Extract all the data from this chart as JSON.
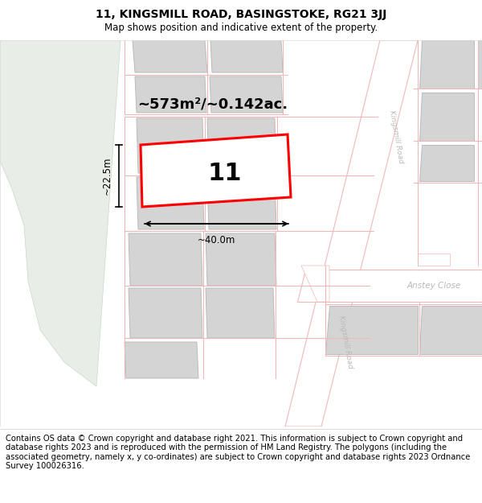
{
  "title": "11, KINGSMILL ROAD, BASINGSTOKE, RG21 3JJ",
  "subtitle": "Map shows position and indicative extent of the property.",
  "footer_line1": "Contains OS data © Crown copyright and database right 2021. This information is subject to Crown copyright and database rights 2023 and is reproduced with the permission of",
  "footer_line2": "HM Land Registry. The polygons (including the associated geometry, namely x, y co-ordinates) are subject to Crown copyright and database rights 2023 Ordnance Survey 100026316.",
  "area_label": "~573m²/~0.142ac.",
  "width_label": "~40.0m",
  "height_label": "~22.5m",
  "number_label": "11",
  "bg_color": "#f5f5f5",
  "green_color": "#e8ede8",
  "road_fill": "#ffffff",
  "block_fill": "#d4d4d4",
  "block_edge": "#bbbbbb",
  "road_edge": "#f0b8b8",
  "red_color": "#ff0000",
  "title_fs": 10,
  "subtitle_fs": 8.5,
  "footer_fs": 7.2,
  "area_fs": 13,
  "number_fs": 22,
  "dim_fs": 8.5
}
